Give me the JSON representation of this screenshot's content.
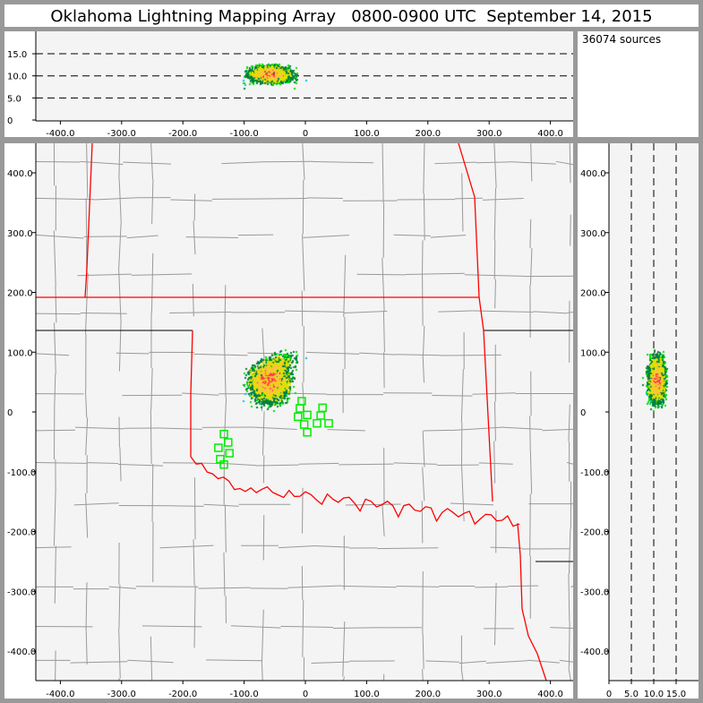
{
  "title": {
    "network": "Oklahoma Lightning Mapping Array",
    "time_range": "0800-0900 UTC",
    "date": "September 14, 2015"
  },
  "info": {
    "source_count": "36074 sources"
  },
  "axes": {
    "x_ticks": [
      "-400.0",
      "-300.0",
      "-200.0",
      "-100.0",
      "0",
      "100.0",
      "200.0",
      "300.0",
      "400.0"
    ],
    "y_ticks": [
      "400.0",
      "300.0",
      "200.0",
      "100.0",
      "0",
      "-100.0",
      "-200.0",
      "-300.0",
      "-400.0"
    ],
    "alt_ticks": [
      "0",
      "5.0",
      "10.0",
      "15.0"
    ],
    "x_values": [
      -400,
      -300,
      -200,
      -100,
      0,
      100,
      200,
      300,
      400
    ],
    "y_values": [
      400,
      300,
      200,
      100,
      0,
      -100,
      -200,
      -300,
      -400
    ],
    "alt_values": [
      0,
      5,
      10,
      15
    ],
    "range_km": [
      -450,
      430
    ],
    "alt_range_km": [
      0,
      20
    ]
  },
  "colors": {
    "state_border": "#ff0000",
    "county_line": "#999999",
    "station": "#00ee00",
    "plot_bg": "#f4f4f4",
    "density_scale": [
      "#8000ff",
      "#0040ff",
      "#00c0ff",
      "#00e000",
      "#008040",
      "#e0e000",
      "#ffc040",
      "#ff4040"
    ]
  },
  "stations_km": [
    [
      -6,
      18
    ],
    [
      -9,
      6
    ],
    [
      -12,
      -8
    ],
    [
      3,
      -5
    ],
    [
      28,
      7
    ],
    [
      25,
      -6
    ],
    [
      -2,
      -21
    ],
    [
      19,
      -19
    ],
    [
      38,
      -19
    ],
    [
      3,
      -34
    ],
    [
      -133,
      -37
    ],
    [
      -126,
      -51
    ],
    [
      -142,
      -60
    ],
    [
      -124,
      -69
    ],
    [
      -139,
      -79
    ],
    [
      -133,
      -88
    ]
  ],
  "lightning": {
    "center_km": [
      -60,
      55
    ],
    "core_altitude_km": 10.5
  }
}
